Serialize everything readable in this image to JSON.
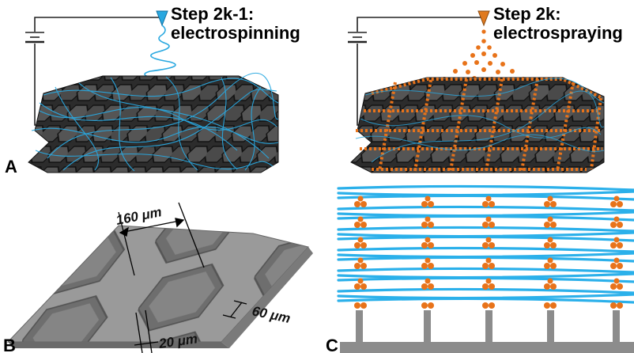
{
  "figure": {
    "panelA": {
      "letter": "A",
      "step_line1": "Step 2k-1:",
      "step_line2": "electrospinning",
      "nozzle_color": "#29a8e0",
      "fiber_color": "#29a8e0",
      "hex_fill": "#3a3a3a"
    },
    "panelRight": {
      "step_line1": "Step 2k:",
      "step_line2": "electrospraying",
      "nozzle_color": "#e07a1f",
      "droplet_color": "#e8731a"
    },
    "panelB": {
      "letter": "B",
      "dim_pitch": "160 μm",
      "dim_depth": "60 μm",
      "dim_wall": "20 μm",
      "surface_color": "#8a8a8a"
    },
    "panelC": {
      "letter": "C",
      "fiber_color": "#2bb0ea",
      "droplet_color": "#e8731a",
      "support_color": "#8c8c8c"
    }
  }
}
